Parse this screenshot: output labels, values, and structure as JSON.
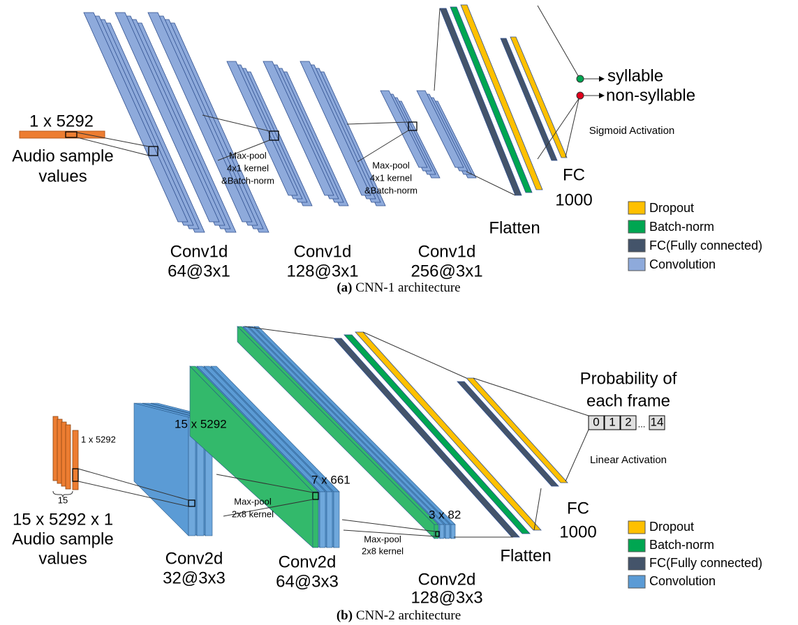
{
  "panel_a": {
    "caption_label": "(a)",
    "caption": "CNN-1 architecture",
    "input_size": "1 x 5292",
    "input_label": [
      "Audio sample",
      "values"
    ],
    "layers": [
      {
        "name": "Conv1d",
        "spec": "64@3x1"
      },
      {
        "name": "Conv1d",
        "spec": "128@3x1"
      },
      {
        "name": "Conv1d",
        "spec": "256@3x1"
      }
    ],
    "pool_labels": [
      [
        "Max-pool",
        "4x1 kernel",
        "&Batch-norm"
      ],
      [
        "Max-pool",
        "4x1 kernel",
        "&Batch-norm"
      ]
    ],
    "flatten": "Flatten",
    "fc": [
      "FC",
      "1000"
    ],
    "activation": "Sigmoid Activation",
    "outputs": [
      "syllable",
      "non-syllable"
    ],
    "legend": [
      "Dropout",
      "Batch-norm",
      "FC(Fully connected)",
      "Convolution"
    ]
  },
  "panel_b": {
    "caption_label": "(b)",
    "caption": "CNN-2 architecture",
    "input_frame": "1 x 5292",
    "input_count": "15",
    "input_size": "15 x 5292 x 1",
    "input_label": [
      "Audio sample",
      "values"
    ],
    "feature_sizes": [
      "15 x 5292",
      "7 x 661",
      "3 x 82"
    ],
    "layers": [
      {
        "name": "Conv2d",
        "spec": "32@3x3"
      },
      {
        "name": "Conv2d",
        "spec": "64@3x3"
      },
      {
        "name": "Conv2d",
        "spec": "128@3x3"
      }
    ],
    "pool_labels": [
      [
        "Max-pool",
        "2x8 kernel"
      ],
      [
        "Max-pool",
        "2x8 kernel"
      ]
    ],
    "flatten": "Flatten",
    "fc": [
      "FC",
      "1000"
    ],
    "activation": "Linear Activation",
    "output_title": [
      "Probability of",
      "each frame"
    ],
    "output_cells": [
      "0",
      "1",
      "2",
      "14"
    ],
    "output_ellipsis": "...",
    "legend": [
      "Dropout",
      "Batch-norm",
      "FC(Fully connected)",
      "Convolution"
    ]
  }
}
